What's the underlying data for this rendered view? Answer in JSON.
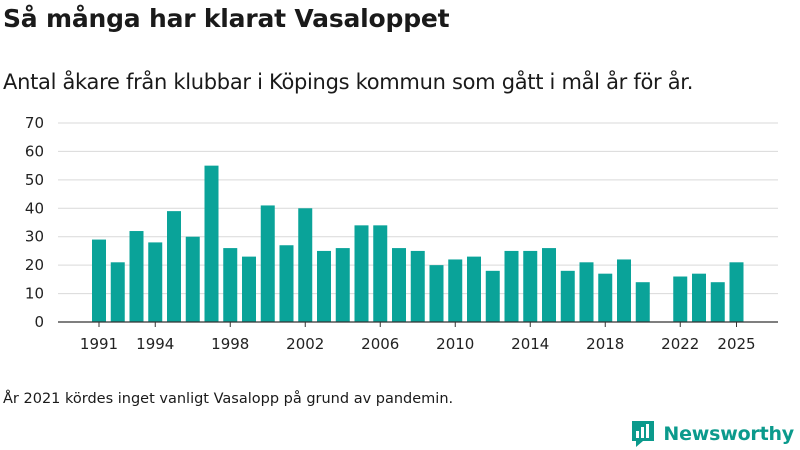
{
  "header": {
    "title": "Så många har klarat Vasaloppet",
    "subtitle": "Antal åkare från klubbar i Köpings kommun som gått i mål år för år."
  },
  "chart_data": {
    "type": "bar",
    "title": "Så många har klarat Vasaloppet",
    "subtitle": "Antal åkare från klubbar i Köpings kommun som gått i mål år för år.",
    "xlabel": "",
    "ylabel": "",
    "ylim": [
      0,
      70
    ],
    "yticks": [
      0,
      10,
      20,
      30,
      40,
      50,
      60,
      70
    ],
    "xticks": [
      1991,
      1994,
      1998,
      2002,
      2006,
      2010,
      2014,
      2018,
      2022,
      2025
    ],
    "grid": true,
    "bar_color": "#0aa399",
    "categories": [
      1991,
      1992,
      1993,
      1994,
      1995,
      1996,
      1997,
      1998,
      1999,
      2000,
      2001,
      2002,
      2003,
      2004,
      2005,
      2006,
      2007,
      2008,
      2009,
      2010,
      2011,
      2012,
      2013,
      2014,
      2015,
      2016,
      2017,
      2018,
      2019,
      2020,
      2021,
      2022,
      2023,
      2024,
      2025
    ],
    "values": [
      29,
      21,
      32,
      28,
      39,
      30,
      55,
      26,
      23,
      41,
      27,
      40,
      25,
      26,
      34,
      34,
      26,
      25,
      20,
      22,
      23,
      18,
      25,
      25,
      26,
      18,
      21,
      17,
      22,
      14,
      null,
      16,
      17,
      14,
      21
    ]
  },
  "footnote": "År 2021 kördes inget vanligt Vasalopp på grund av pandemin.",
  "brand": {
    "name": "Newsworthy",
    "icon": "newsworthy-logo-icon",
    "color": "#0b9a8c"
  }
}
